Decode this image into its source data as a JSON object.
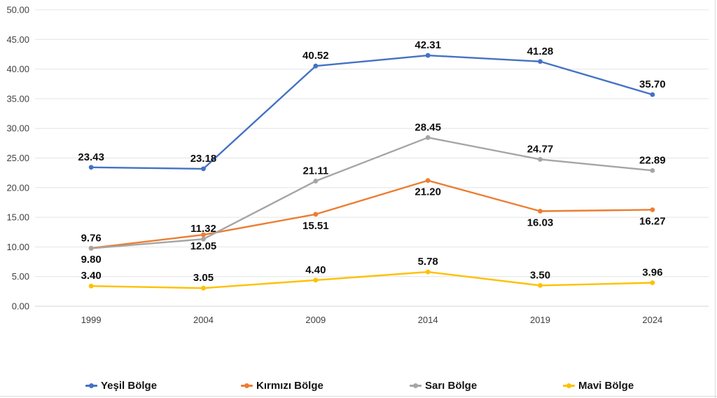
{
  "chart_data": {
    "type": "line",
    "categories": [
      "1999",
      "2004",
      "2009",
      "2014",
      "2019",
      "2024"
    ],
    "series": [
      {
        "name": "Yeşil Bölge",
        "color": "#4472C4",
        "values": [
          23.43,
          23.18,
          40.52,
          42.31,
          41.28,
          35.7
        ],
        "labels": [
          "23.43",
          "23.18",
          "40.52",
          "42.31",
          "41.28",
          "35.70"
        ],
        "label_position": "above"
      },
      {
        "name": "Kırmızı Bölge",
        "color": "#ED7D31",
        "values": [
          9.8,
          12.05,
          15.51,
          21.2,
          16.03,
          16.27
        ],
        "labels": [
          "9.80",
          "12.05",
          "15.51",
          "21.20",
          "16.03",
          "16.27"
        ],
        "label_position": "below"
      },
      {
        "name": "Sarı Bölge",
        "color": "#A5A5A5",
        "values": [
          9.76,
          11.32,
          21.11,
          28.45,
          24.77,
          22.89
        ],
        "labels": [
          "9.76",
          "11.32",
          "21.11",
          "28.45",
          "24.77",
          "22.89"
        ],
        "label_position": "above"
      },
      {
        "name": "Mavi Bölge",
        "color": "#FFC000",
        "values": [
          3.4,
          3.05,
          4.4,
          5.78,
          3.5,
          3.96
        ],
        "labels": [
          "3.40",
          "3.05",
          "4.40",
          "5.78",
          "3.50",
          "3.96"
        ],
        "label_position": "above"
      }
    ],
    "title": "",
    "xlabel": "",
    "ylabel": "",
    "ylim": [
      0,
      50
    ],
    "y_tick_step": 5,
    "y_tick_labels": [
      "50.00",
      "45.00",
      "40.00",
      "35.00",
      "30.00",
      "25.00",
      "20.00",
      "15.00",
      "10.00",
      "5.00",
      "0.00"
    ],
    "grid": true,
    "data_labels_shown": true,
    "legend_position": "bottom"
  }
}
